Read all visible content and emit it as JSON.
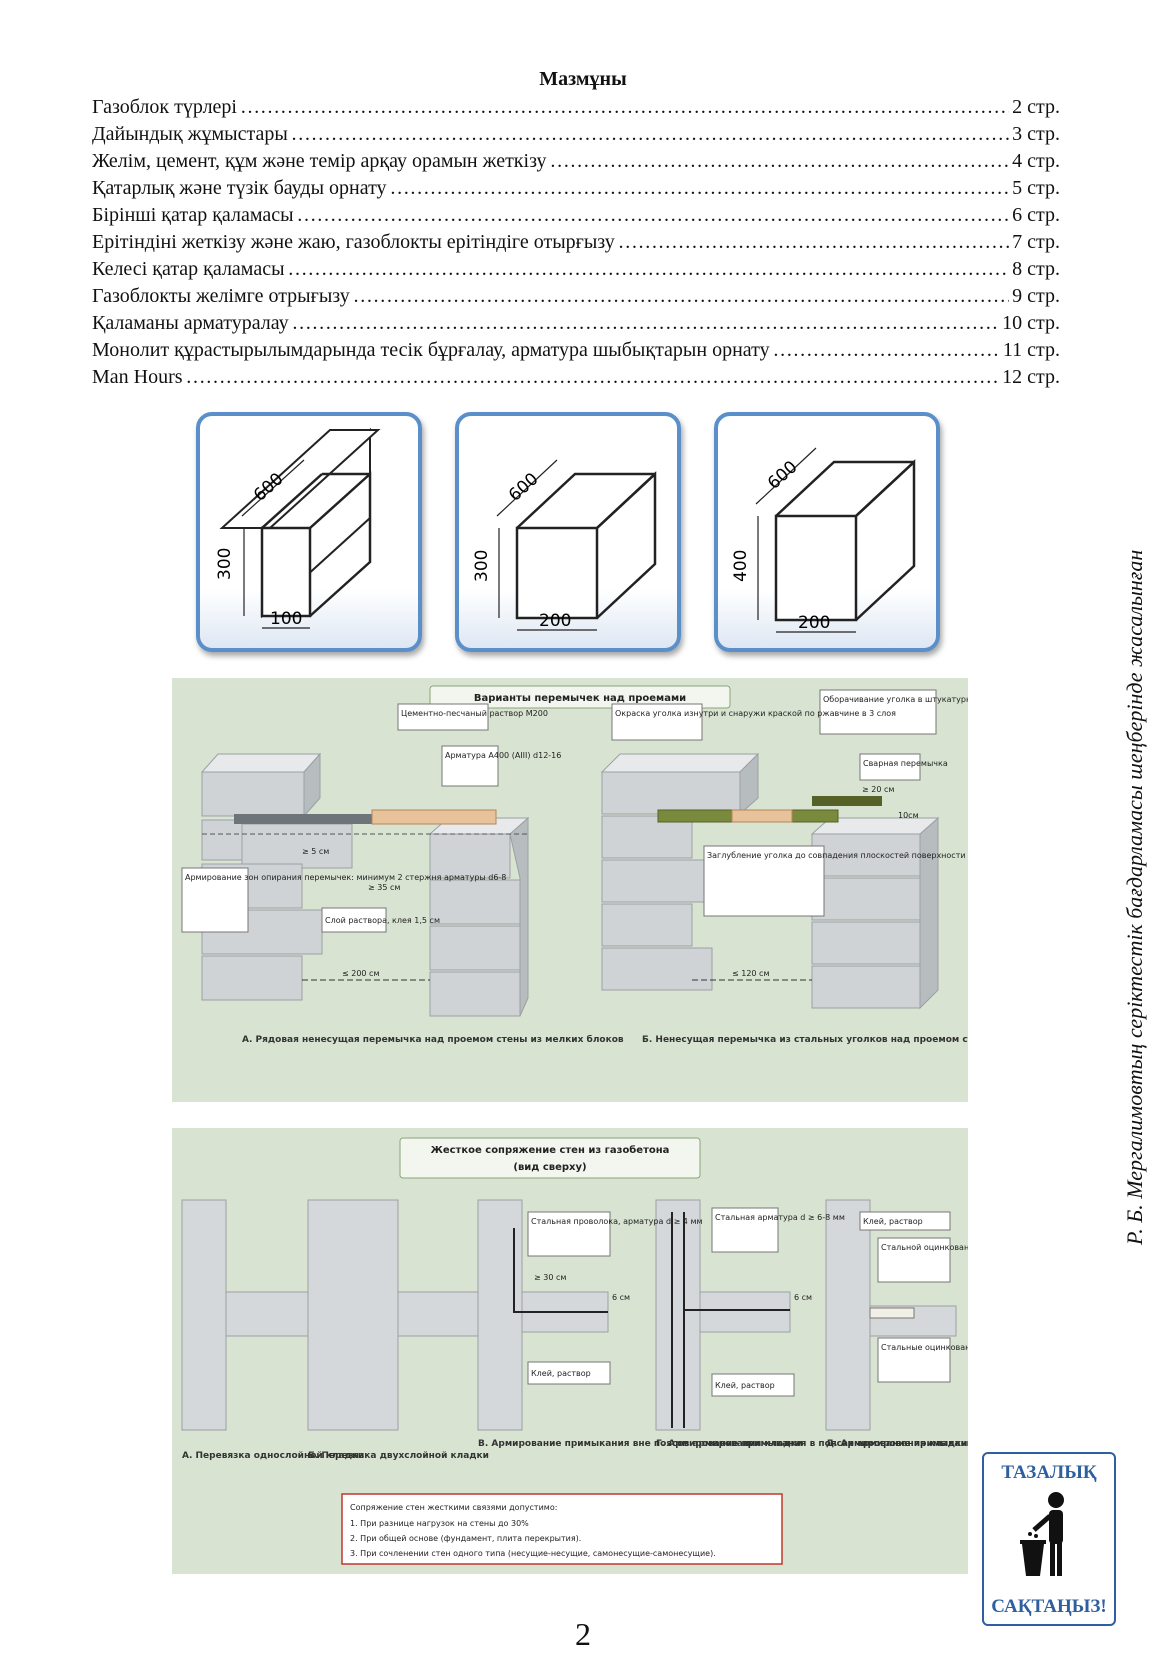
{
  "toc": {
    "title": "Мазмұны",
    "items": [
      {
        "title": "Газоблок түрлері",
        "page": "2 стр."
      },
      {
        "title": "Дайындық жұмыстары",
        "page": "3 стр."
      },
      {
        "title": "Желім, цемент, құм және темір арқау орамын жеткізу",
        "page": "4 стр."
      },
      {
        "title": "Қатарлық және түзік бауды орнату",
        "page": "5 стр."
      },
      {
        "title": "Бірінші қатар қаламасы",
        "page": "6 стр."
      },
      {
        "title": "Ерітіндіні жеткізу және жаю, газоблокты ерітіндіге отырғызу",
        "page": "7 стр."
      },
      {
        "title": "Келесі қатар қаламасы",
        "page": "8 стр."
      },
      {
        "title": "Газоблокты желімге отрығызу",
        "page": "9 стр."
      },
      {
        "title": "Қаламаны арматуралау",
        "page": "10 стр."
      },
      {
        "title": "Монолит құрастырылымдарында тесік бұрғалау, арматура шыбықтарын орнату",
        "page": "11 стр."
      },
      {
        "title": "Man Hours",
        "page": "12 стр."
      }
    ]
  },
  "blocks": [
    {
      "length": "600",
      "height": "300",
      "width": "100"
    },
    {
      "length": "600",
      "height": "300",
      "width": "200"
    },
    {
      "length": "600",
      "height": "400",
      "width": "200"
    }
  ],
  "lintel_figure": {
    "title": "Варианты перемычек над проемами",
    "labels": {
      "mortar": "Цементно-песчаный раствор М200",
      "rebar": "Арматура А400 (AIII) d12-16",
      "reinforce": "Армирование зон опирания перемычек: минимум 2 стержня арматуры d6-8",
      "layer": "Слой раствора, клея 1,5 см",
      "depth5": "≥ 5 см",
      "depth35": "≥ 35 см",
      "span200": "≤ 200 см",
      "paint": "Окраска уголка изнутри и снаружи краской по ржавчине в 3 слоя",
      "mesh": "Оборачивание уголка в штукатурную сетку при необходимости дальнейшей штукатурки.",
      "welded": "Сварная перемычка",
      "overlap20": "≥ 20 см",
      "gap10": "10см",
      "embed": "Заглубление уголка до совпадения плоскостей поверхности блока и уголка, либо большее заглубление уголка для утепления и отделки.",
      "span120": "≤ 120 см"
    },
    "caption_a": "А. Рядовая ненесущая перемычка над проемом стены из мелких блоков",
    "caption_b": "Б. Ненесущая перемычка из стальных уголков над проемом стены из мелких блоков"
  },
  "wall_figure": {
    "title": "Жесткое сопряжение стен из газобетона",
    "subtitle": "(вид сверху)",
    "labels": {
      "wire": "Стальная проволока, арматура d ≥ 4 мм",
      "min30": "≥ 30 см",
      "six_a": "6 см",
      "glue_a": "Клей, раствор",
      "rebar68": "Стальная арматура d ≥ 6-8 мм",
      "six_b": "6 см",
      "glue_b": "Клей, раствор",
      "glue_c": "Клей, раствор",
      "corner": "Стальной оцинкованный уголок",
      "nails": "Стальные оцинкованные гвозди"
    },
    "captions": [
      "А. Перевязка однослойной кладки",
      "Б. Перевязка двухслойной кладки",
      "В. Армирование примыкания вне поясов армирования кладки",
      "Г. Армирование примыкания в поясах армирования кладки",
      "Д. Армирование примыкания стальным уголком"
    ],
    "note": {
      "heading": "Сопряжение стен жесткими связями допустимо:",
      "items": [
        "1. При разнице нагрузок на стены до 30%",
        "2. При общей основе (фундамент, плита перекрытия).",
        "3. При сочленении стен одного типа (несущие-несущие, самонесущие-самонесущие)."
      ]
    }
  },
  "side_text": "Р. Б. Мергалимовтың серіктестік бағдарламасы шеңберінде жасалынған",
  "cleanliness_sign": {
    "top": "ТАЗАЛЫҚ",
    "bottom": "САҚТАҢЫЗ!"
  },
  "page_number": "2"
}
